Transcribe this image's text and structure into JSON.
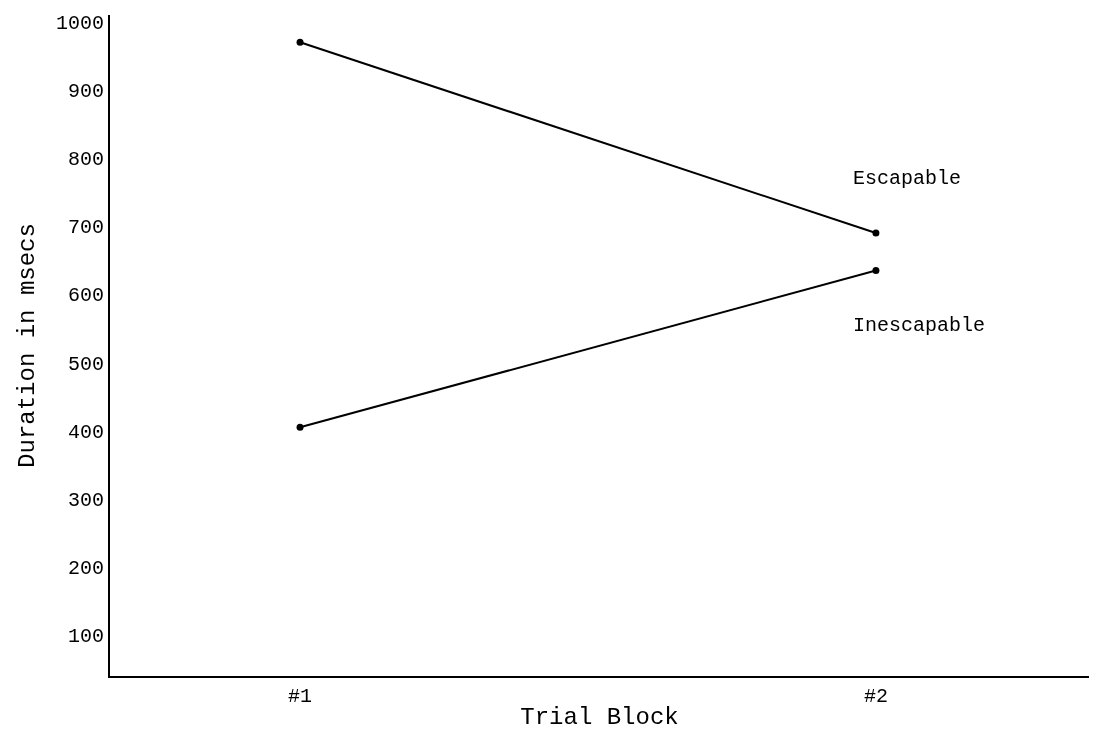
{
  "chart_data": {
    "type": "line",
    "xlabel": "Trial Block",
    "ylabel": "Duration in msecs",
    "categories": [
      "#1",
      "#2"
    ],
    "series": [
      {
        "name": "Escapable",
        "color": "#000000",
        "values": [
          970,
          690
        ]
      },
      {
        "name": "Inescapable",
        "color": "#000000",
        "values": [
          405,
          635
        ]
      }
    ],
    "ylim": [
      40,
      1010
    ],
    "yticks": [
      100,
      200,
      300,
      400,
      500,
      600,
      700,
      800,
      900,
      1000
    ],
    "legend": false,
    "marker": "circle",
    "line_style": "solid"
  }
}
